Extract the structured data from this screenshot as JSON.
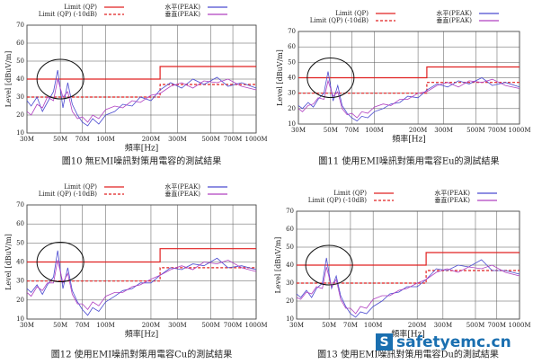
{
  "chart_data": [
    {
      "type": "line",
      "caption": "圖10 無EMI噪訊對策用電容的測試結果",
      "x_label": "頻率[Hz]",
      "y_label": "Level [dBuV/m]",
      "xlim": [
        30,
        1000
      ],
      "ylim": [
        10,
        70
      ],
      "log_x": true,
      "grid": true,
      "xticks": [
        {
          "value": 30,
          "label": "30M"
        },
        {
          "value": 50,
          "label": "50M"
        },
        {
          "value": 70,
          "label": "70M"
        },
        {
          "value": 100,
          "label": "100M"
        },
        {
          "value": 200,
          "label": "200M"
        },
        {
          "value": 300,
          "label": "300M"
        },
        {
          "value": 500,
          "label": "500M"
        },
        {
          "value": 700,
          "label": "700M"
        },
        {
          "value": 1000,
          "label": "1000M"
        }
      ],
      "yticks": [
        10,
        20,
        30,
        40,
        50,
        60,
        70
      ],
      "series": [
        {
          "name": "Limit (QP)",
          "color": "#e02020",
          "dashed": false,
          "x": [
            30,
            230,
            230,
            1000
          ],
          "values": [
            40,
            40,
            47,
            47
          ]
        },
        {
          "name": "Limit (QP) (-10dB)",
          "color": "#e02020",
          "dashed": true,
          "x": [
            30,
            230,
            230,
            1000
          ],
          "values": [
            30,
            30,
            37,
            37
          ]
        },
        {
          "name": "水平(PEAK)",
          "color": "#4a4ad0",
          "dashed": false,
          "x": [
            30,
            32,
            35,
            38,
            41,
            45,
            48,
            52,
            56,
            60,
            65,
            70,
            76,
            82,
            90,
            100,
            115,
            130,
            150,
            170,
            200,
            230,
            270,
            320,
            380,
            450,
            550,
            650,
            800,
            1000
          ],
          "values": [
            28,
            25,
            30,
            22,
            27,
            33,
            45,
            24,
            38,
            26,
            20,
            16,
            14,
            18,
            15,
            20,
            22,
            26,
            25,
            30,
            28,
            34,
            38,
            35,
            40,
            37,
            41,
            36,
            38,
            35
          ]
        },
        {
          "name": "垂直(PEAK)",
          "color": "#b040c0",
          "dashed": false,
          "x": [
            30,
            32,
            35,
            38,
            41,
            45,
            48,
            52,
            56,
            60,
            65,
            70,
            76,
            82,
            90,
            100,
            115,
            130,
            150,
            170,
            200,
            230,
            270,
            320,
            380,
            450,
            550,
            650,
            800,
            1000
          ],
          "values": [
            22,
            20,
            26,
            24,
            30,
            28,
            40,
            30,
            33,
            22,
            18,
            19,
            16,
            20,
            18,
            23,
            25,
            24,
            28,
            27,
            31,
            32,
            36,
            38,
            35,
            39,
            38,
            40,
            36,
            34
          ]
        }
      ]
    },
    {
      "type": "line",
      "caption": "圖11 使用EMI噪訊對策用電容Eu的測試結果",
      "x_label": "頻率[Hz]",
      "y_label": "Level [dBuV/m]",
      "xlim": [
        30,
        1000
      ],
      "ylim": [
        10,
        70
      ],
      "log_x": true,
      "grid": true,
      "xticks": [
        {
          "value": 30,
          "label": "30M"
        },
        {
          "value": 50,
          "label": "50M"
        },
        {
          "value": 70,
          "label": "70M"
        },
        {
          "value": 100,
          "label": "100M"
        },
        {
          "value": 200,
          "label": "200M"
        },
        {
          "value": 300,
          "label": "300M"
        },
        {
          "value": 500,
          "label": "500M"
        },
        {
          "value": 700,
          "label": "700M"
        },
        {
          "value": 1000,
          "label": "1000M"
        }
      ],
      "yticks": [
        10,
        20,
        30,
        40,
        50,
        60,
        70
      ],
      "series": [
        {
          "name": "Limit (QP)",
          "color": "#e02020",
          "dashed": false,
          "x": [
            30,
            230,
            230,
            1000
          ],
          "values": [
            40,
            40,
            47,
            47
          ]
        },
        {
          "name": "Limit (QP) (-10dB)",
          "color": "#e02020",
          "dashed": true,
          "x": [
            30,
            230,
            230,
            1000
          ],
          "values": [
            30,
            30,
            37,
            37
          ]
        },
        {
          "name": "水平(PEAK)",
          "color": "#4a4ad0",
          "dashed": false,
          "x": [
            30,
            32,
            35,
            38,
            41,
            45,
            48,
            52,
            56,
            60,
            65,
            70,
            76,
            82,
            90,
            100,
            115,
            130,
            150,
            170,
            200,
            230,
            270,
            320,
            380,
            450,
            550,
            650,
            800,
            1000
          ],
          "values": [
            22,
            20,
            24,
            21,
            26,
            30,
            44,
            25,
            35,
            22,
            17,
            14,
            12,
            15,
            14,
            18,
            20,
            23,
            24,
            28,
            27,
            32,
            36,
            34,
            38,
            36,
            40,
            35,
            37,
            34
          ]
        },
        {
          "name": "垂直(PEAK)",
          "color": "#b040c0",
          "dashed": false,
          "x": [
            30,
            32,
            35,
            38,
            41,
            45,
            48,
            52,
            56,
            60,
            65,
            70,
            76,
            82,
            90,
            100,
            115,
            130,
            150,
            170,
            200,
            230,
            270,
            320,
            380,
            450,
            550,
            650,
            800,
            1000
          ],
          "values": [
            20,
            18,
            22,
            23,
            27,
            26,
            38,
            28,
            31,
            20,
            16,
            17,
            14,
            18,
            17,
            21,
            23,
            22,
            26,
            26,
            30,
            31,
            35,
            37,
            34,
            38,
            37,
            39,
            35,
            33
          ]
        }
      ]
    },
    {
      "type": "line",
      "caption": "圖12 使用EMI噪訊對策用電容Cu的測試結果",
      "x_label": "頻率[Hz]",
      "y_label": "Level [dBuV/m]",
      "xlim": [
        30,
        1000
      ],
      "ylim": [
        10,
        70
      ],
      "log_x": true,
      "grid": true,
      "xticks": [
        {
          "value": 30,
          "label": "30M"
        },
        {
          "value": 50,
          "label": "50M"
        },
        {
          "value": 70,
          "label": "70M"
        },
        {
          "value": 100,
          "label": "100M"
        },
        {
          "value": 200,
          "label": "200M"
        },
        {
          "value": 300,
          "label": "300M"
        },
        {
          "value": 500,
          "label": "500M"
        },
        {
          "value": 700,
          "label": "700M"
        },
        {
          "value": 1000,
          "label": "1000M"
        }
      ],
      "yticks": [
        10,
        20,
        30,
        40,
        50,
        60,
        70
      ],
      "series": [
        {
          "name": "Limit (QP)",
          "color": "#e02020",
          "dashed": false,
          "x": [
            30,
            230,
            230,
            1000
          ],
          "values": [
            40,
            40,
            47,
            47
          ]
        },
        {
          "name": "Limit (QP) (-10dB)",
          "color": "#e02020",
          "dashed": true,
          "x": [
            30,
            230,
            230,
            1000
          ],
          "values": [
            30,
            30,
            37,
            37
          ]
        },
        {
          "name": "水平(PEAK)",
          "color": "#4a4ad0",
          "dashed": false,
          "x": [
            30,
            32,
            35,
            38,
            41,
            45,
            48,
            52,
            56,
            60,
            65,
            70,
            76,
            82,
            90,
            100,
            115,
            130,
            150,
            170,
            200,
            230,
            270,
            320,
            380,
            450,
            550,
            650,
            800,
            1000
          ],
          "values": [
            26,
            24,
            28,
            23,
            28,
            32,
            46,
            26,
            37,
            25,
            19,
            15,
            12,
            16,
            14,
            19,
            22,
            25,
            26,
            29,
            29,
            33,
            37,
            36,
            39,
            38,
            42,
            37,
            38,
            36
          ]
        },
        {
          "name": "垂直(PEAK)",
          "color": "#b040c0",
          "dashed": false,
          "x": [
            30,
            32,
            35,
            38,
            41,
            45,
            48,
            52,
            56,
            60,
            65,
            70,
            76,
            82,
            90,
            100,
            115,
            130,
            150,
            170,
            200,
            230,
            270,
            320,
            380,
            450,
            550,
            650,
            800,
            1000
          ],
          "values": [
            24,
            22,
            27,
            25,
            29,
            29,
            41,
            29,
            34,
            23,
            18,
            18,
            15,
            19,
            17,
            22,
            24,
            24,
            27,
            28,
            31,
            33,
            36,
            38,
            36,
            40,
            39,
            41,
            37,
            35
          ]
        }
      ]
    },
    {
      "type": "line",
      "caption": "圖13 使用EMI噪訊對策用電容Du的測試結果",
      "x_label": "頻率[Hz]",
      "y_label": "Level [dBuV/m]",
      "xlim": [
        30,
        1000
      ],
      "ylim": [
        10,
        70
      ],
      "log_x": true,
      "grid": true,
      "xticks": [
        {
          "value": 30,
          "label": "30M"
        },
        {
          "value": 50,
          "label": "50M"
        },
        {
          "value": 70,
          "label": "70M"
        },
        {
          "value": 100,
          "label": "100M"
        },
        {
          "value": 200,
          "label": "200M"
        },
        {
          "value": 300,
          "label": "300M"
        },
        {
          "value": 500,
          "label": "500M"
        },
        {
          "value": 700,
          "label": "700M"
        },
        {
          "value": 1000,
          "label": "1000M"
        }
      ],
      "yticks": [
        10,
        20,
        30,
        40,
        50,
        60,
        70
      ],
      "series": [
        {
          "name": "Limit (QP)",
          "color": "#e02020",
          "dashed": false,
          "x": [
            30,
            230,
            230,
            1000
          ],
          "values": [
            40,
            40,
            47,
            47
          ]
        },
        {
          "name": "Limit (QP) (-10dB)",
          "color": "#e02020",
          "dashed": true,
          "x": [
            30,
            230,
            230,
            1000
          ],
          "values": [
            30,
            30,
            37,
            37
          ]
        },
        {
          "name": "水平(PEAK)",
          "color": "#4a4ad0",
          "dashed": false,
          "x": [
            30,
            32,
            35,
            38,
            41,
            45,
            48,
            52,
            56,
            60,
            65,
            70,
            76,
            82,
            90,
            100,
            115,
            130,
            150,
            170,
            200,
            230,
            270,
            320,
            380,
            450,
            550,
            650,
            800,
            1000
          ],
          "values": [
            24,
            22,
            26,
            22,
            27,
            30,
            44,
            27,
            34,
            23,
            17,
            13,
            11,
            14,
            13,
            17,
            20,
            24,
            25,
            28,
            28,
            32,
            38,
            37,
            40,
            39,
            43,
            37,
            37,
            35
          ]
        },
        {
          "name": "垂直(PEAK)",
          "color": "#b040c0",
          "dashed": false,
          "x": [
            30,
            32,
            35,
            38,
            41,
            45,
            48,
            52,
            56,
            60,
            65,
            70,
            76,
            82,
            90,
            100,
            115,
            130,
            150,
            170,
            200,
            230,
            270,
            320,
            380,
            450,
            550,
            650,
            800,
            1000
          ],
          "values": [
            22,
            21,
            25,
            24,
            28,
            27,
            39,
            28,
            32,
            21,
            16,
            16,
            13,
            17,
            16,
            21,
            23,
            23,
            26,
            27,
            30,
            32,
            36,
            38,
            36,
            39,
            38,
            40,
            36,
            34
          ]
        }
      ]
    }
  ],
  "watermark": {
    "icon": "S",
    "text": "safetyemc.cn"
  }
}
